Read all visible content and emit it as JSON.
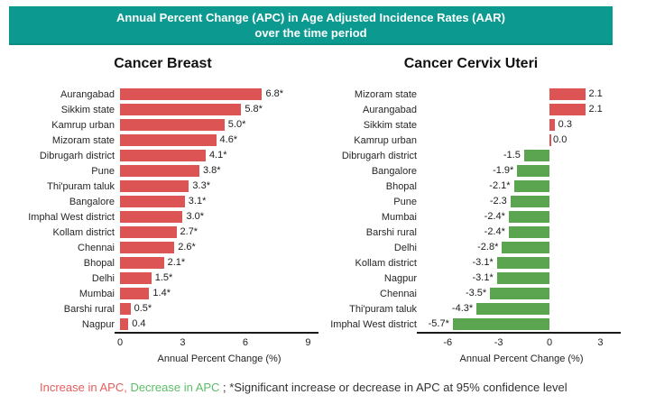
{
  "banner": {
    "line1": "Annual Percent Change (APC) in Age Adjusted Incidence Rates (AAR)",
    "line2": "over the time period",
    "bg_color": "#0c9a90",
    "text_color": "#ffffff"
  },
  "colors": {
    "increase_bar": "#dc5453",
    "decrease_bar": "#5ba450",
    "axis": "#1a1a1a"
  },
  "footer": {
    "increase": "Increase in APC,",
    "increase_color": "#e55d5d",
    "decrease": " Decrease in APC",
    "decrease_color": "#5dbd68",
    "rest": " ; *Significant increase or decrease in APC at 95% confidence level",
    "rest_color": "#333333"
  },
  "chart_data": [
    {
      "type": "bar",
      "orientation": "horizontal",
      "title": "Cancer Breast",
      "xlabel": "Annual Percent Change (%)",
      "ylabel": "",
      "xlim": [
        0,
        9.5
      ],
      "ticks": [
        0,
        3,
        6,
        9
      ],
      "grid": false,
      "categories": [
        "Aurangabad",
        "Sikkim state",
        "Kamrup urban",
        "Mizoram state",
        "Dibrugarh district",
        "Pune",
        "Thi'puram taluk",
        "Bangalore",
        "Imphal West district",
        "Kollam district",
        "Chennai",
        "Bhopal",
        "Delhi",
        "Mumbai",
        "Barshi rural",
        "Nagpur"
      ],
      "values": [
        6.8,
        5.8,
        5.0,
        4.6,
        4.1,
        3.8,
        3.3,
        3.1,
        3.0,
        2.7,
        2.6,
        2.1,
        1.5,
        1.4,
        0.5,
        0.4
      ],
      "labels": [
        "6.8*",
        "5.8*",
        "5.0*",
        "4.6*",
        "4.1*",
        "3.8*",
        "3.3*",
        "3.1*",
        "3.0*",
        "2.7*",
        "2.6*",
        "2.1*",
        "1.5*",
        "1.4*",
        "0.5*",
        "0.4"
      ]
    },
    {
      "type": "bar",
      "orientation": "horizontal",
      "title": "Cancer Cervix Uteri",
      "xlabel": "Annual Percent Change (%)",
      "ylabel": "",
      "xlim": [
        -7.5,
        4.2
      ],
      "ticks": [
        -6,
        -3,
        0,
        3
      ],
      "grid": false,
      "categories": [
        "Mizoram state",
        "Aurangabad",
        "Sikkim state",
        "Kamrup urban",
        "Dibrugarh district",
        "Bangalore",
        "Bhopal",
        "Pune",
        "Mumbai",
        "Barshi rural",
        "Delhi",
        "Kollam district",
        "Nagpur",
        "Chennai",
        "Thi'puram taluk",
        "Imphal West district"
      ],
      "values": [
        2.1,
        2.1,
        0.3,
        0.0,
        -1.5,
        -1.9,
        -2.1,
        -2.3,
        -2.4,
        -2.4,
        -2.8,
        -3.1,
        -3.1,
        -3.5,
        -4.3,
        -5.7
      ],
      "labels": [
        "2.1",
        "2.1",
        "0.3",
        "0.0",
        "-1.5",
        "-1.9*",
        "-2.1*",
        "-2.3",
        "-2.4*",
        "-2.4*",
        "-2.8*",
        "-3.1*",
        "-3.1*",
        "-3.5*",
        "-4.3*",
        "-5.7*"
      ]
    }
  ]
}
